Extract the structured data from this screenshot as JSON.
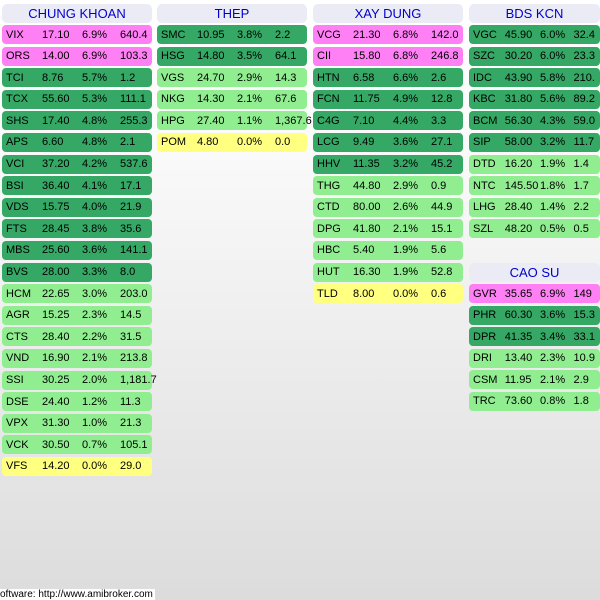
{
  "colors": {
    "ceiling": "#ff7ff5",
    "up_strong": "#35a865",
    "up_medium": "#90ee90",
    "flat": "#ffff80",
    "header_bg": "#ebebf5",
    "header_text": "#0000cc"
  },
  "sectors": [
    {
      "title": "CHUNG KHOAN",
      "rows": [
        {
          "sym": "VIX",
          "price": "17.10",
          "chg": "6.9%",
          "vol": "640.4",
          "level": "ceiling"
        },
        {
          "sym": "ORS",
          "price": "14.00",
          "chg": "6.9%",
          "vol": "103.3",
          "level": "ceiling"
        },
        {
          "sym": "TCI",
          "price": "8.76",
          "chg": "5.7%",
          "vol": "1.2",
          "level": "up_strong"
        },
        {
          "sym": "TCX",
          "price": "55.60",
          "chg": "5.3%",
          "vol": "111.1",
          "level": "up_strong"
        },
        {
          "sym": "SHS",
          "price": "17.40",
          "chg": "4.8%",
          "vol": "255.3",
          "level": "up_strong"
        },
        {
          "sym": "APS",
          "price": "6.60",
          "chg": "4.8%",
          "vol": "2.1",
          "level": "up_strong"
        },
        {
          "sym": "VCI",
          "price": "37.20",
          "chg": "4.2%",
          "vol": "537.6",
          "level": "up_strong"
        },
        {
          "sym": "BSI",
          "price": "36.40",
          "chg": "4.1%",
          "vol": "17.1",
          "level": "up_strong"
        },
        {
          "sym": "VDS",
          "price": "15.75",
          "chg": "4.0%",
          "vol": "21.9",
          "level": "up_strong"
        },
        {
          "sym": "FTS",
          "price": "28.45",
          "chg": "3.8%",
          "vol": "35.6",
          "level": "up_strong"
        },
        {
          "sym": "MBS",
          "price": "25.60",
          "chg": "3.6%",
          "vol": "141.1",
          "level": "up_strong"
        },
        {
          "sym": "BVS",
          "price": "28.00",
          "chg": "3.3%",
          "vol": "8.0",
          "level": "up_strong"
        },
        {
          "sym": "HCM",
          "price": "22.65",
          "chg": "3.0%",
          "vol": "203.0",
          "level": "up_medium"
        },
        {
          "sym": "AGR",
          "price": "15.25",
          "chg": "2.3%",
          "vol": "14.5",
          "level": "up_medium"
        },
        {
          "sym": "CTS",
          "price": "28.40",
          "chg": "2.2%",
          "vol": "31.5",
          "level": "up_medium"
        },
        {
          "sym": "VND",
          "price": "16.90",
          "chg": "2.1%",
          "vol": "213.8",
          "level": "up_medium"
        },
        {
          "sym": "SSI",
          "price": "30.25",
          "chg": "2.0%",
          "vol": "1,181.7",
          "level": "up_medium"
        },
        {
          "sym": "DSE",
          "price": "24.40",
          "chg": "1.2%",
          "vol": "11.3",
          "level": "up_medium"
        },
        {
          "sym": "VPX",
          "price": "31.30",
          "chg": "1.0%",
          "vol": "21.3",
          "level": "up_medium"
        },
        {
          "sym": "VCK",
          "price": "30.50",
          "chg": "0.7%",
          "vol": "105.1",
          "level": "up_medium"
        },
        {
          "sym": "VFS",
          "price": "14.20",
          "chg": "0.0%",
          "vol": "29.0",
          "level": "flat"
        }
      ]
    },
    {
      "title": "THEP",
      "rows": [
        {
          "sym": "SMC",
          "price": "10.95",
          "chg": "3.8%",
          "vol": "2.2",
          "level": "up_strong"
        },
        {
          "sym": "HSG",
          "price": "14.80",
          "chg": "3.5%",
          "vol": "64.1",
          "level": "up_strong"
        },
        {
          "sym": "VGS",
          "price": "24.70",
          "chg": "2.9%",
          "vol": "14.3",
          "level": "up_medium"
        },
        {
          "sym": "NKG",
          "price": "14.30",
          "chg": "2.1%",
          "vol": "67.6",
          "level": "up_medium"
        },
        {
          "sym": "HPG",
          "price": "27.40",
          "chg": "1.1%",
          "vol": "1,367.6",
          "level": "up_medium"
        },
        {
          "sym": "POM",
          "price": "4.80",
          "chg": "0.0%",
          "vol": "0.0",
          "level": "flat"
        }
      ]
    },
    {
      "title": "XAY DUNG",
      "rows": [
        {
          "sym": "VCG",
          "price": "21.30",
          "chg": "6.8%",
          "vol": "142.0",
          "level": "ceiling"
        },
        {
          "sym": "CII",
          "price": "15.80",
          "chg": "6.8%",
          "vol": "246.8",
          "level": "ceiling"
        },
        {
          "sym": "HTN",
          "price": "6.58",
          "chg": "6.6%",
          "vol": "2.6",
          "level": "up_strong"
        },
        {
          "sym": "FCN",
          "price": "11.75",
          "chg": "4.9%",
          "vol": "12.8",
          "level": "up_strong"
        },
        {
          "sym": "C4G",
          "price": "7.10",
          "chg": "4.4%",
          "vol": "3.3",
          "level": "up_strong"
        },
        {
          "sym": "LCG",
          "price": "9.49",
          "chg": "3.6%",
          "vol": "27.1",
          "level": "up_strong"
        },
        {
          "sym": "HHV",
          "price": "11.35",
          "chg": "3.2%",
          "vol": "45.2",
          "level": "up_strong"
        },
        {
          "sym": "THG",
          "price": "44.80",
          "chg": "2.9%",
          "vol": "0.9",
          "level": "up_medium"
        },
        {
          "sym": "CTD",
          "price": "80.00",
          "chg": "2.6%",
          "vol": "44.9",
          "level": "up_medium"
        },
        {
          "sym": "DPG",
          "price": "41.80",
          "chg": "2.1%",
          "vol": "15.1",
          "level": "up_medium"
        },
        {
          "sym": "HBC",
          "price": "5.40",
          "chg": "1.9%",
          "vol": "5.6",
          "level": "up_medium"
        },
        {
          "sym": "HUT",
          "price": "16.30",
          "chg": "1.9%",
          "vol": "52.8",
          "level": "up_medium"
        },
        {
          "sym": "TLD",
          "price": "8.00",
          "chg": "0.0%",
          "vol": "0.6",
          "level": "flat"
        }
      ]
    },
    {
      "title": "BDS KCN",
      "rows": [
        {
          "sym": "VGC",
          "price": "45.90",
          "chg": "6.0%",
          "vol": "32.4",
          "level": "up_strong"
        },
        {
          "sym": "SZC",
          "price": "30.20",
          "chg": "6.0%",
          "vol": "23.3",
          "level": "up_strong"
        },
        {
          "sym": "IDC",
          "price": "43.90",
          "chg": "5.8%",
          "vol": "210.",
          "level": "up_strong"
        },
        {
          "sym": "KBC",
          "price": "31.80",
          "chg": "5.6%",
          "vol": "89.2",
          "level": "up_strong"
        },
        {
          "sym": "BCM",
          "price": "56.30",
          "chg": "4.3%",
          "vol": "59.0",
          "level": "up_strong"
        },
        {
          "sym": "SIP",
          "price": "58.00",
          "chg": "3.2%",
          "vol": "11.7",
          "level": "up_strong"
        },
        {
          "sym": "DTD",
          "price": "16.20",
          "chg": "1.9%",
          "vol": "1.4",
          "level": "up_medium"
        },
        {
          "sym": "NTC",
          "price": "145.50",
          "chg": "1.8%",
          "vol": "1.7",
          "level": "up_medium"
        },
        {
          "sym": "LHG",
          "price": "28.40",
          "chg": "1.4%",
          "vol": "2.2",
          "level": "up_medium"
        },
        {
          "sym": "SZL",
          "price": "48.20",
          "chg": "0.5%",
          "vol": "0.5",
          "level": "up_medium"
        }
      ]
    },
    {
      "title": "CAO SU",
      "rows": [
        {
          "sym": "GVR",
          "price": "35.65",
          "chg": "6.9%",
          "vol": "149",
          "level": "ceiling"
        },
        {
          "sym": "PHR",
          "price": "60.30",
          "chg": "3.6%",
          "vol": "15.3",
          "level": "up_strong"
        },
        {
          "sym": "DPR",
          "price": "41.35",
          "chg": "3.4%",
          "vol": "33.1",
          "level": "up_strong"
        },
        {
          "sym": "DRI",
          "price": "13.40",
          "chg": "2.3%",
          "vol": "10.9",
          "level": "up_medium"
        },
        {
          "sym": "CSM",
          "price": "11.95",
          "chg": "2.1%",
          "vol": "2.9",
          "level": "up_medium"
        },
        {
          "sym": "TRC",
          "price": "73.60",
          "chg": "0.8%",
          "vol": "1.8",
          "level": "up_medium"
        }
      ]
    }
  ],
  "footer": {
    "text": "oftware: http://www.amibroker.com"
  }
}
